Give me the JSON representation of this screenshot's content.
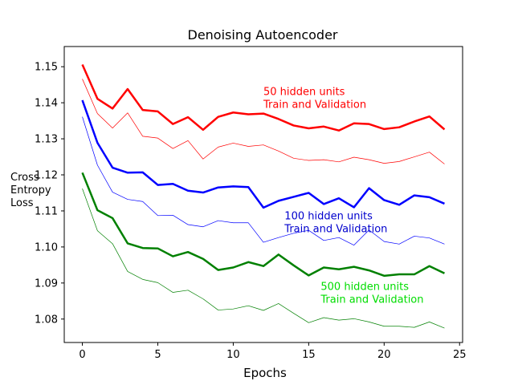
{
  "chart_data": {
    "type": "line",
    "title": "Denoising Autoencoder",
    "xlabel": "Epochs",
    "ylabel_lines": [
      "Cross",
      "Entropy",
      "Loss"
    ],
    "xlim": [
      -1.2,
      25.2
    ],
    "ylim": [
      1.0735,
      1.1556
    ],
    "xticks": [
      0,
      5,
      10,
      15,
      20,
      25
    ],
    "yticks": [
      1.08,
      1.09,
      1.1,
      1.11,
      1.12,
      1.13,
      1.14,
      1.15
    ],
    "ytick_labels": [
      "1.08",
      "1.09",
      "1.10",
      "1.11",
      "1.12",
      "1.13",
      "1.14",
      "1.15"
    ],
    "grid": false,
    "x": [
      0,
      1,
      2,
      3,
      4,
      5,
      6,
      7,
      8,
      9,
      10,
      11,
      12,
      13,
      14,
      15,
      16,
      17,
      18,
      19,
      20,
      21,
      22,
      23,
      24
    ],
    "series": [
      {
        "group": "50 hidden units",
        "role": "train",
        "color": "#ff0000",
        "values": [
          1.1506,
          1.1411,
          1.1384,
          1.1438,
          1.138,
          1.1376,
          1.1341,
          1.136,
          1.1325,
          1.1361,
          1.1373,
          1.1368,
          1.137,
          1.1355,
          1.1337,
          1.1329,
          1.1334,
          1.1323,
          1.1343,
          1.1341,
          1.1327,
          1.1332,
          1.1348,
          1.1362,
          1.1326
        ]
      },
      {
        "group": "50 hidden units",
        "role": "validation",
        "color": "#ff0000",
        "values": [
          1.1466,
          1.137,
          1.133,
          1.1372,
          1.1307,
          1.1302,
          1.1273,
          1.1295,
          1.1244,
          1.1277,
          1.1288,
          1.1279,
          1.1283,
          1.1266,
          1.1246,
          1.124,
          1.1242,
          1.1236,
          1.1249,
          1.1242,
          1.1232,
          1.1237,
          1.125,
          1.1263,
          1.123
        ]
      },
      {
        "group": "100 hidden units",
        "role": "train",
        "color": "#0000ff",
        "values": [
          1.1407,
          1.1289,
          1.122,
          1.1206,
          1.1207,
          1.1172,
          1.1175,
          1.1156,
          1.1151,
          1.1165,
          1.1168,
          1.1166,
          1.1109,
          1.1128,
          1.1139,
          1.115,
          1.1119,
          1.1135,
          1.111,
          1.1163,
          1.113,
          1.1117,
          1.1143,
          1.1138,
          1.112
        ]
      },
      {
        "group": "100 hidden units",
        "role": "validation",
        "color": "#0000ff",
        "values": [
          1.1361,
          1.1227,
          1.1152,
          1.1132,
          1.1126,
          1.1087,
          1.1088,
          1.1062,
          1.1056,
          1.1073,
          1.1067,
          1.1067,
          1.1013,
          1.1026,
          1.1038,
          1.1046,
          1.1018,
          1.1026,
          1.1005,
          1.1047,
          1.1015,
          1.1008,
          1.103,
          1.1025,
          1.1008
        ]
      },
      {
        "group": "500 hidden units",
        "role": "train",
        "color": "#008000",
        "values": [
          1.1206,
          1.1102,
          1.108,
          1.101,
          1.0997,
          1.0996,
          1.0974,
          1.0986,
          1.0967,
          1.0936,
          1.0943,
          1.0958,
          1.0947,
          1.0979,
          1.0949,
          1.0921,
          1.0943,
          1.0938,
          1.0945,
          1.0935,
          1.092,
          1.0924,
          1.0924,
          1.0947,
          1.0927
        ]
      },
      {
        "group": "500 hidden units",
        "role": "validation",
        "color": "#008000",
        "values": [
          1.1162,
          1.1045,
          1.1009,
          1.0932,
          1.091,
          1.0901,
          1.0874,
          1.088,
          1.0856,
          1.0825,
          1.0828,
          1.0837,
          1.0824,
          1.0843,
          1.0816,
          1.079,
          1.0804,
          1.0797,
          1.0801,
          1.0792,
          1.078,
          1.078,
          1.0777,
          1.0792,
          1.0775
        ]
      }
    ],
    "annotations": [
      {
        "lines": [
          "50 hidden units",
          "Train and Validation"
        ],
        "color": "#ff0000",
        "x": 12.0,
        "y": 1.1421
      },
      {
        "lines": [
          "100 hidden units",
          "Train and Validation"
        ],
        "color": "#0000cd",
        "x": 13.4,
        "y": 1.1077
      },
      {
        "lines": [
          "500 hidden units",
          "Train and Validation"
        ],
        "color": "#00dd00",
        "x": 15.8,
        "y": 1.0881
      }
    ],
    "line_widths": {
      "train": 2.5,
      "validation": 0.7
    }
  }
}
